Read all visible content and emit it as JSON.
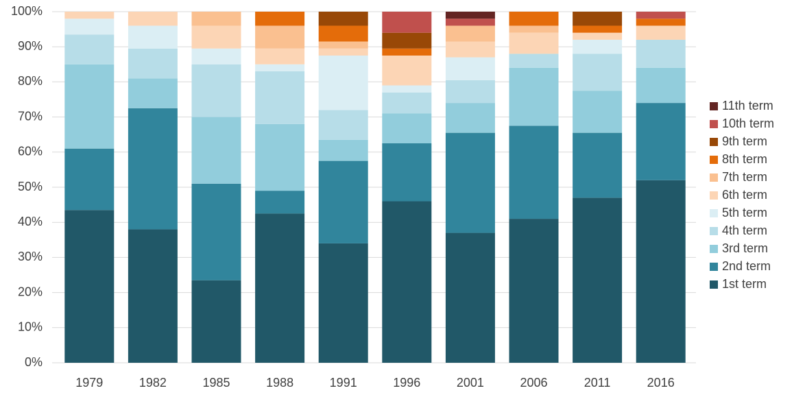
{
  "chart_data": {
    "type": "stacked-bar",
    "categories": [
      "1979",
      "1982",
      "1985",
      "1988",
      "1991",
      "1996",
      "2001",
      "2006",
      "2011",
      "2016"
    ],
    "series": [
      {
        "name": "1st term",
        "color": "#215868",
        "values": [
          43.5,
          38,
          23.5,
          42.5,
          34,
          46,
          37,
          41,
          47,
          52
        ]
      },
      {
        "name": "2nd term",
        "color": "#31859c",
        "values": [
          17.5,
          34.5,
          27.5,
          6.5,
          23.5,
          16.5,
          28.5,
          26.5,
          18.5,
          22
        ]
      },
      {
        "name": "3rd term",
        "color": "#92cddc",
        "values": [
          24,
          8.5,
          19,
          19,
          6,
          8.5,
          8.5,
          16.5,
          12,
          10
        ]
      },
      {
        "name": "4th term",
        "color": "#b7dde8",
        "values": [
          8.5,
          8.5,
          15,
          15,
          8.5,
          6,
          6.5,
          4,
          10.5,
          8
        ]
      },
      {
        "name": "5th term",
        "color": "#dbeef4",
        "values": [
          4.5,
          6.5,
          4.5,
          2,
          15.5,
          2,
          6.5,
          0,
          4,
          0
        ]
      },
      {
        "name": "6th term",
        "color": "#fcd5b5",
        "values": [
          2,
          4,
          6.5,
          4.5,
          2,
          8.5,
          4.5,
          6,
          2,
          4
        ]
      },
      {
        "name": "7th term",
        "color": "#fac090",
        "values": [
          0,
          0,
          4,
          6.5,
          2,
          0,
          4.5,
          2,
          0,
          0
        ]
      },
      {
        "name": "8th term",
        "color": "#e46c0a",
        "values": [
          0,
          0,
          0,
          4,
          4.5,
          2,
          0,
          4,
          2,
          2
        ]
      },
      {
        "name": "9th term",
        "color": "#984807",
        "values": [
          0,
          0,
          0,
          0,
          4,
          4.5,
          0,
          0,
          4,
          0
        ]
      },
      {
        "name": "10th term",
        "color": "#c0504d",
        "values": [
          0,
          0,
          0,
          0,
          0,
          6,
          2,
          0,
          0,
          2
        ]
      },
      {
        "name": "11th term",
        "color": "#632523",
        "values": [
          0,
          0,
          0,
          0,
          0,
          0,
          2,
          0,
          0,
          0
        ]
      }
    ],
    "ylim": [
      0,
      100
    ],
    "yticks": [
      {
        "value": 0,
        "label": "0%"
      },
      {
        "value": 10,
        "label": "10%"
      },
      {
        "value": 20,
        "label": "20%"
      },
      {
        "value": 30,
        "label": "30%"
      },
      {
        "value": 40,
        "label": "40%"
      },
      {
        "value": 50,
        "label": "50%"
      },
      {
        "value": 60,
        "label": "60%"
      },
      {
        "value": 70,
        "label": "70%"
      },
      {
        "value": 80,
        "label": "80%"
      },
      {
        "value": 90,
        "label": "90%"
      },
      {
        "value": 100,
        "label": "100%"
      }
    ],
    "grid": true,
    "legend": "right"
  }
}
